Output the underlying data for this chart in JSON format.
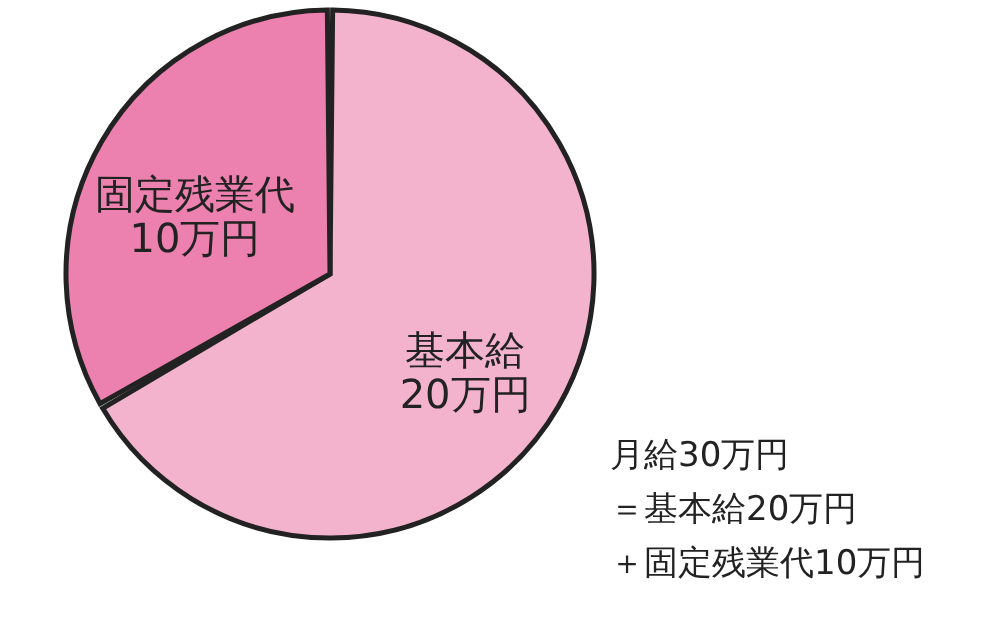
{
  "chart_data": {
    "type": "pie",
    "categories": [
      "基本給",
      "固定残業代"
    ],
    "values": [
      20,
      10
    ],
    "value_labels": [
      "20万円",
      "10万円"
    ],
    "colors": [
      "#f4b3cd",
      "#ec80ae"
    ],
    "annotations": [
      "月給30万円",
      "＝基本給20万円",
      "＋固定残業代10万円"
    ]
  }
}
